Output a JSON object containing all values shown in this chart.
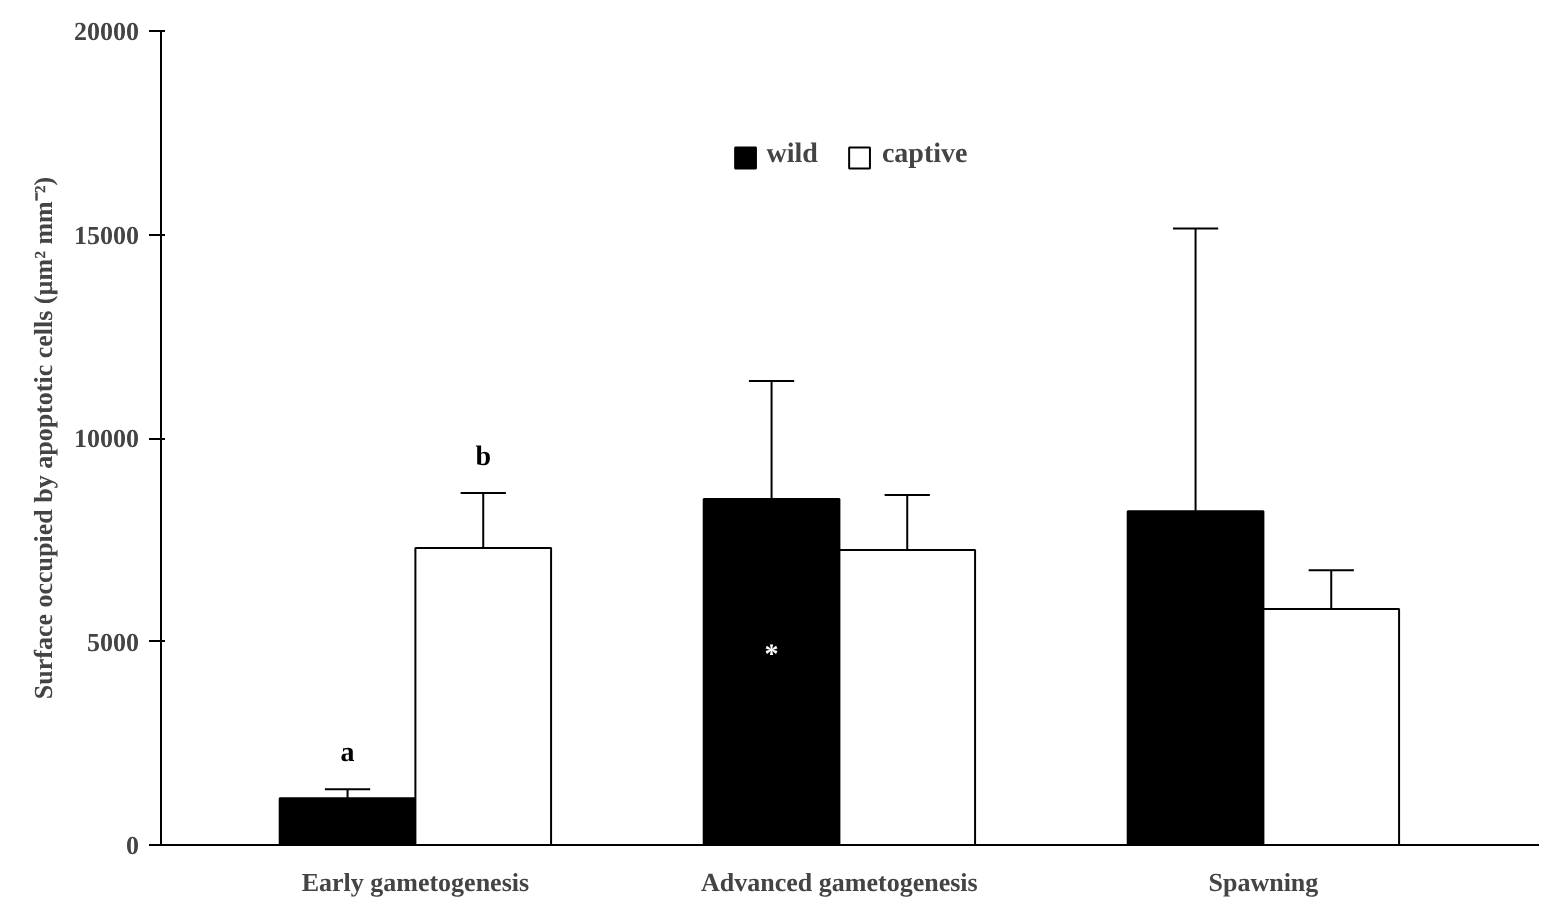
{
  "chart_data": {
    "type": "bar",
    "ylabel": "Surface occupied by apoptotic cells (µm² mm⁻²)",
    "categories": [
      "Early gametogenesis",
      "Advanced gametogenesis",
      "Spawning"
    ],
    "series": [
      {
        "name": "wild",
        "color": "#000000",
        "values": [
          1150,
          8500,
          8200
        ],
        "errors": [
          [
            1150,
            1370
          ],
          [
            8500,
            11400
          ],
          [
            8200,
            15150
          ]
        ],
        "value_labels": [
          "a",
          "*",
          null
        ]
      },
      {
        "name": "captive",
        "color": "#ffffff",
        "values": [
          7300,
          7250,
          5800
        ],
        "errors": [
          [
            7300,
            8650
          ],
          [
            7250,
            8600
          ],
          [
            5800,
            6750
          ]
        ],
        "value_labels": [
          "b",
          null,
          null
        ]
      }
    ],
    "ylim": [
      0,
      20000
    ],
    "yticks": [
      0,
      5000,
      10000,
      15000,
      20000
    ],
    "grid": false,
    "legend": "top"
  }
}
